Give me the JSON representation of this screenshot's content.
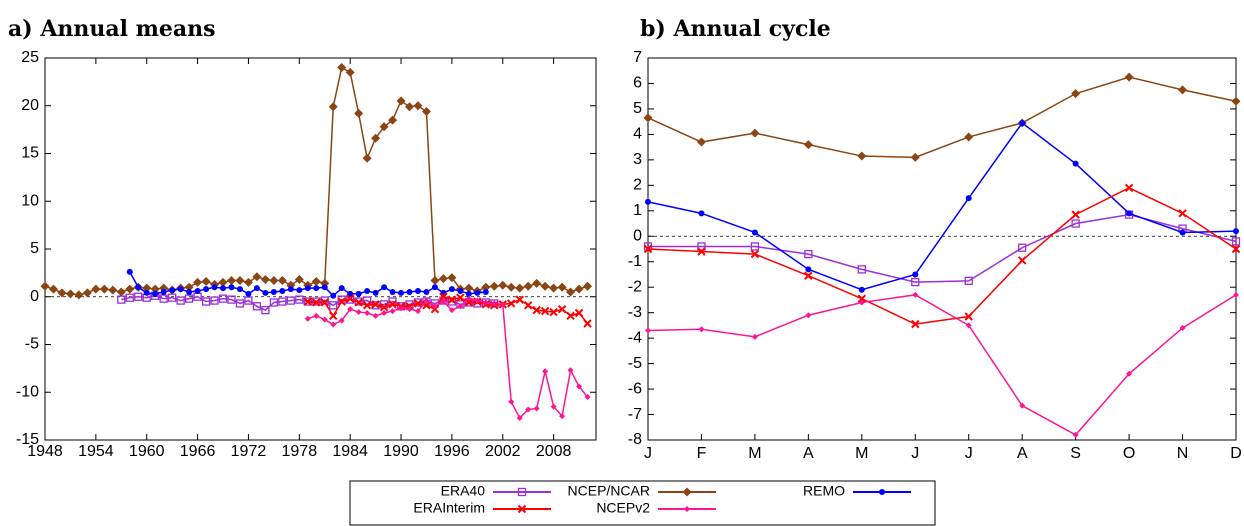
{
  "chart_data": [
    {
      "type": "line",
      "title": "a) Annual means",
      "xlim": [
        1948,
        2013
      ],
      "xticks": [
        1948,
        1954,
        1960,
        1966,
        1972,
        1978,
        1984,
        1990,
        1996,
        2002,
        2008
      ],
      "ylim": [
        -15,
        25
      ],
      "yticks": [
        -15,
        -10,
        -5,
        0,
        5,
        10,
        15,
        20,
        25
      ],
      "zero_line": true,
      "series": [
        {
          "name": "ERA40",
          "color": "#9b30d9",
          "marker": "square-open",
          "x": [
            1957,
            1958,
            1959,
            1960,
            1961,
            1962,
            1963,
            1964,
            1965,
            1966,
            1967,
            1968,
            1969,
            1970,
            1971,
            1972,
            1973,
            1974,
            1975,
            1976,
            1977,
            1978,
            1979,
            1980,
            1981,
            1982,
            1983,
            1984,
            1985,
            1986,
            1987,
            1988,
            1989,
            1990,
            1991,
            1992,
            1993,
            1994,
            1995,
            1996,
            1997,
            1998,
            1999,
            2000,
            2001
          ],
          "values": [
            -0.3,
            -0.1,
            0.0,
            -0.1,
            0.1,
            -0.2,
            -0.1,
            -0.4,
            -0.2,
            0.0,
            -0.5,
            -0.4,
            -0.2,
            -0.3,
            -0.7,
            -0.4,
            -1.0,
            -1.4,
            -0.6,
            -0.5,
            -0.4,
            -0.3,
            -0.5,
            -0.5,
            -0.4,
            -0.9,
            -0.3,
            -0.3,
            -0.5,
            -0.4,
            -0.9,
            -0.8,
            -0.5,
            -1.0,
            -0.8,
            -0.6,
            -0.5,
            -0.7,
            -0.4,
            -0.5,
            -0.8,
            -0.6,
            -0.7,
            -0.6,
            -0.7
          ]
        },
        {
          "name": "NCEP/NCAR",
          "color": "#8b4513",
          "marker": "diamond",
          "x": [
            1948,
            1949,
            1950,
            1951,
            1952,
            1953,
            1954,
            1955,
            1956,
            1957,
            1958,
            1959,
            1960,
            1961,
            1962,
            1963,
            1964,
            1965,
            1966,
            1967,
            1968,
            1969,
            1970,
            1971,
            1972,
            1973,
            1974,
            1975,
            1976,
            1977,
            1978,
            1979,
            1980,
            1981,
            1982,
            1983,
            1984,
            1985,
            1986,
            1987,
            1988,
            1989,
            1990,
            1991,
            1992,
            1993,
            1994,
            1995,
            1996,
            1997,
            1998,
            1999,
            2000,
            2001,
            2002,
            2003,
            2004,
            2005,
            2006,
            2007,
            2008,
            2009,
            2010,
            2011,
            2012
          ],
          "values": [
            1.1,
            0.8,
            0.4,
            0.3,
            0.2,
            0.4,
            0.8,
            0.8,
            0.7,
            0.5,
            0.8,
            1.0,
            0.9,
            0.8,
            0.9,
            0.7,
            0.9,
            1.0,
            1.5,
            1.6,
            1.3,
            1.5,
            1.7,
            1.7,
            1.5,
            2.1,
            1.8,
            1.7,
            1.7,
            1.2,
            1.8,
            1.2,
            1.6,
            1.4,
            19.9,
            24.0,
            23.5,
            19.2,
            14.5,
            16.6,
            17.8,
            18.5,
            20.5,
            19.9,
            20.0,
            19.4,
            1.7,
            1.9,
            2.0,
            0.8,
            0.9,
            0.6,
            1.0,
            1.1,
            1.2,
            1.0,
            0.9,
            1.1,
            1.4,
            1.1,
            0.9,
            1.0,
            0.5,
            0.8,
            1.1
          ]
        },
        {
          "name": "REMO",
          "color": "#0000ff",
          "marker": "circle",
          "x": [
            1958,
            1959,
            1960,
            1961,
            1962,
            1963,
            1964,
            1965,
            1966,
            1967,
            1968,
            1969,
            1970,
            1971,
            1972,
            1973,
            1974,
            1975,
            1976,
            1977,
            1978,
            1979,
            1980,
            1981,
            1982,
            1983,
            1984,
            1985,
            1986,
            1987,
            1988,
            1989,
            1990,
            1991,
            1992,
            1993,
            1994,
            1995,
            1996,
            1997,
            1998,
            1999,
            2000
          ],
          "values": [
            2.6,
            1.0,
            0.4,
            0.3,
            0.5,
            0.7,
            0.8,
            0.5,
            0.6,
            0.8,
            1.0,
            0.9,
            1.0,
            0.8,
            0.3,
            0.9,
            0.4,
            0.5,
            0.6,
            0.8,
            0.7,
            0.9,
            0.9,
            1.0,
            0.1,
            0.9,
            0.3,
            0.3,
            0.6,
            0.4,
            1.0,
            0.5,
            0.4,
            0.5,
            0.6,
            0.5,
            1.0,
            0.4,
            0.8,
            0.6,
            0.3,
            0.4,
            0.5
          ]
        },
        {
          "name": "ERAInterim",
          "color": "#ff0000",
          "marker": "cross",
          "x": [
            1979,
            1980,
            1981,
            1982,
            1983,
            1984,
            1985,
            1986,
            1987,
            1988,
            1989,
            1990,
            1991,
            1992,
            1993,
            1994,
            1995,
            1996,
            1997,
            1998,
            1999,
            2000,
            2001,
            2002,
            2003,
            2004,
            2005,
            2006,
            2007,
            2008,
            2009,
            2010,
            2011,
            2012
          ],
          "values": [
            -0.5,
            -0.6,
            -0.6,
            -2.0,
            -0.5,
            -0.2,
            -0.6,
            -0.9,
            -0.8,
            -1.1,
            -0.8,
            -1.0,
            -1.0,
            -0.7,
            -0.9,
            -1.3,
            0.0,
            -0.3,
            -0.1,
            -0.6,
            -0.5,
            -0.8,
            -0.9,
            -0.8,
            -0.7,
            -0.3,
            -0.9,
            -1.4,
            -1.5,
            -1.6,
            -1.3,
            -2.0,
            -1.7,
            -2.8
          ]
        },
        {
          "name": "NCEPv2",
          "color": "#ff1493",
          "marker": "small-diamond",
          "x": [
            1979,
            1980,
            1981,
            1982,
            1983,
            1984,
            1985,
            1986,
            1987,
            1988,
            1989,
            1990,
            1991,
            1992,
            1993,
            1994,
            1995,
            1996,
            1997,
            1998,
            1999,
            2000,
            2001,
            2002,
            2003,
            2004,
            2005,
            2006,
            2007,
            2008,
            2009,
            2010,
            2011,
            2012
          ],
          "values": [
            -2.3,
            -2.0,
            -2.4,
            -2.9,
            -2.5,
            -1.3,
            -1.6,
            -1.7,
            -2.0,
            -1.7,
            -1.5,
            -1.2,
            -1.3,
            -1.5,
            -0.4,
            -1.0,
            -0.5,
            -1.4,
            -1.0,
            -0.2,
            -0.4,
            -0.6,
            -0.7,
            -0.8,
            -11.0,
            -12.7,
            -11.8,
            -11.7,
            -7.8,
            -11.5,
            -12.5,
            -7.7,
            -9.4,
            -10.5
          ]
        }
      ]
    },
    {
      "type": "line",
      "title": "b) Annual cycle",
      "categories": [
        "J",
        "F",
        "M",
        "A",
        "M",
        "J",
        "J",
        "A",
        "S",
        "O",
        "N",
        "D"
      ],
      "ylim": [
        -8,
        7
      ],
      "yticks": [
        -8,
        -7,
        -6,
        -5,
        -4,
        -3,
        -2,
        -1,
        0,
        1,
        2,
        3,
        4,
        5,
        6,
        7
      ],
      "zero_line": true,
      "legend": "bottom",
      "series": [
        {
          "color": "#9b30d9",
          "marker": "square-open",
          "values": [
            -0.4,
            -0.4,
            -0.4,
            -0.7,
            -1.3,
            -1.8,
            -1.75,
            -0.45,
            0.5,
            0.85,
            0.3,
            -0.2
          ]
        },
        {
          "color": "#8b4513",
          "marker": "diamond",
          "values": [
            4.65,
            3.7,
            4.05,
            3.6,
            3.15,
            3.1,
            3.9,
            4.45,
            5.6,
            6.25,
            5.75,
            5.3
          ]
        },
        {
          "color": "#0000ff",
          "marker": "circle",
          "values": [
            1.35,
            0.9,
            0.15,
            -1.3,
            -2.1,
            -1.5,
            1.5,
            4.45,
            2.85,
            0.9,
            0.15,
            0.2
          ]
        },
        {
          "color": "#ff0000",
          "marker": "cross",
          "values": [
            -0.5,
            -0.6,
            -0.7,
            -1.55,
            -2.45,
            -3.45,
            -3.15,
            -0.95,
            0.85,
            1.9,
            0.9,
            -0.5
          ]
        },
        {
          "color": "#ff1493",
          "marker": "small-diamond",
          "values": [
            -3.7,
            -3.65,
            -3.95,
            -3.1,
            -2.6,
            -2.3,
            -3.5,
            -6.65,
            -7.8,
            -5.4,
            -3.6,
            -2.3
          ]
        }
      ]
    }
  ]
}
